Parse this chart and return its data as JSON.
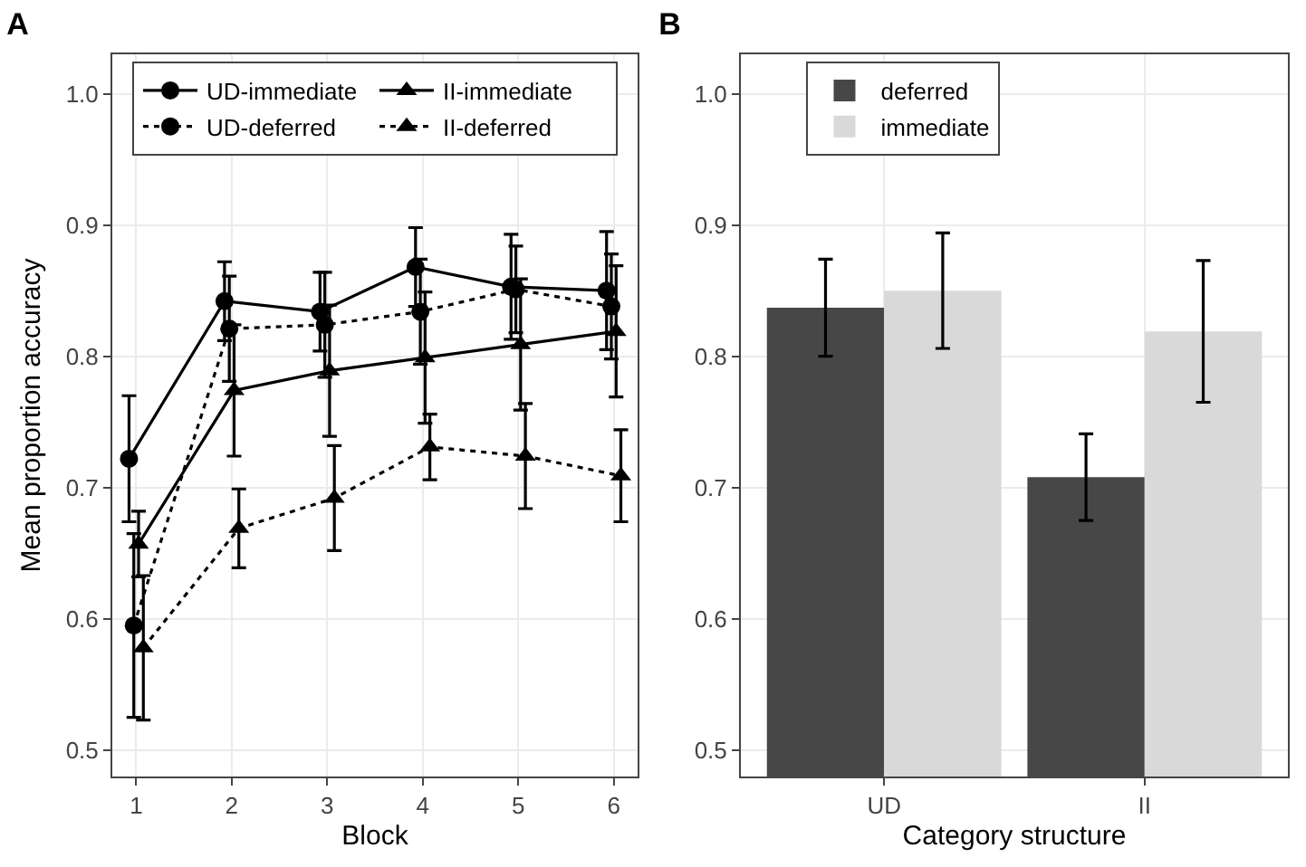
{
  "chart_data": [
    {
      "type": "line",
      "title": "A",
      "xlabel": "Block",
      "ylabel": "Mean proportion accuracy",
      "xlim": [
        0.75,
        6.25
      ],
      "xticks": [
        1,
        2,
        3,
        4,
        5,
        6
      ],
      "ylim": [
        0.48,
        1.03
      ],
      "yticks": [
        {
          "value": 0.5,
          "label": "0.5"
        },
        {
          "value": 0.6,
          "label": "0.6"
        },
        {
          "value": 0.7,
          "label": "0.7"
        },
        {
          "value": 0.8,
          "label": "0.8"
        },
        {
          "value": 0.9,
          "label": "0.9"
        },
        {
          "value": 1.0,
          "label": "1.0"
        }
      ],
      "grid": true,
      "legend": "top",
      "series": [
        {
          "name": "UD-immediate",
          "x": [
            0.925,
            1.925,
            2.925,
            3.925,
            4.925,
            5.925
          ],
          "color": "#000000",
          "marker": "circle",
          "line_style": "solid",
          "values": [
            0.722,
            0.842,
            0.834,
            0.868,
            0.853,
            0.85
          ],
          "errors": [
            0.048,
            0.03,
            0.03,
            0.03,
            0.04,
            0.045
          ]
        },
        {
          "name": "II-immediate",
          "x": [
            1.025,
            2.025,
            3.025,
            4.025,
            5.025,
            6.025
          ],
          "color": "#000000",
          "marker": "triangle",
          "line_style": "solid",
          "values": [
            0.657,
            0.774,
            0.789,
            0.799,
            0.809,
            0.819
          ],
          "errors": [
            0.025,
            0.05,
            0.05,
            0.05,
            0.05,
            0.05
          ]
        },
        {
          "name": "UD-deferred",
          "x": [
            0.975,
            1.975,
            2.975,
            3.975,
            4.975,
            5.975
          ],
          "color": "#000000",
          "marker": "circle",
          "line_style": "dotted",
          "values": [
            0.595,
            0.821,
            0.824,
            0.834,
            0.851,
            0.838
          ],
          "errors": [
            0.07,
            0.04,
            0.04,
            0.04,
            0.033,
            0.04
          ]
        },
        {
          "name": "II-deferred",
          "x": [
            1.075,
            2.075,
            3.075,
            4.075,
            5.075,
            6.075
          ],
          "color": "#000000",
          "marker": "triangle",
          "line_style": "dotted",
          "values": [
            0.578,
            0.669,
            0.692,
            0.731,
            0.724,
            0.709
          ],
          "errors": [
            0.055,
            0.03,
            0.04,
            0.025,
            0.04,
            0.035
          ]
        }
      ]
    },
    {
      "type": "bar",
      "title": "B",
      "xlabel": "Category structure",
      "categories": [
        "UD",
        "II"
      ],
      "ylim": [
        0.48,
        1.03
      ],
      "yticks": [
        {
          "value": 0.5,
          "label": "0.5"
        },
        {
          "value": 0.6,
          "label": "0.6"
        },
        {
          "value": 0.7,
          "label": "0.7"
        },
        {
          "value": 0.8,
          "label": "0.8"
        },
        {
          "value": 0.9,
          "label": "0.9"
        },
        {
          "value": 1.0,
          "label": "1.0"
        }
      ],
      "grid": true,
      "legend": "top left",
      "series": [
        {
          "name": "deferred",
          "color": "#474747",
          "values": [
            0.837,
            0.708
          ],
          "errors": [
            0.037,
            0.033
          ]
        },
        {
          "name": "immediate",
          "color": "#d9d9d9",
          "values": [
            0.85,
            0.819
          ],
          "errors": [
            0.044,
            0.054
          ]
        }
      ]
    }
  ]
}
